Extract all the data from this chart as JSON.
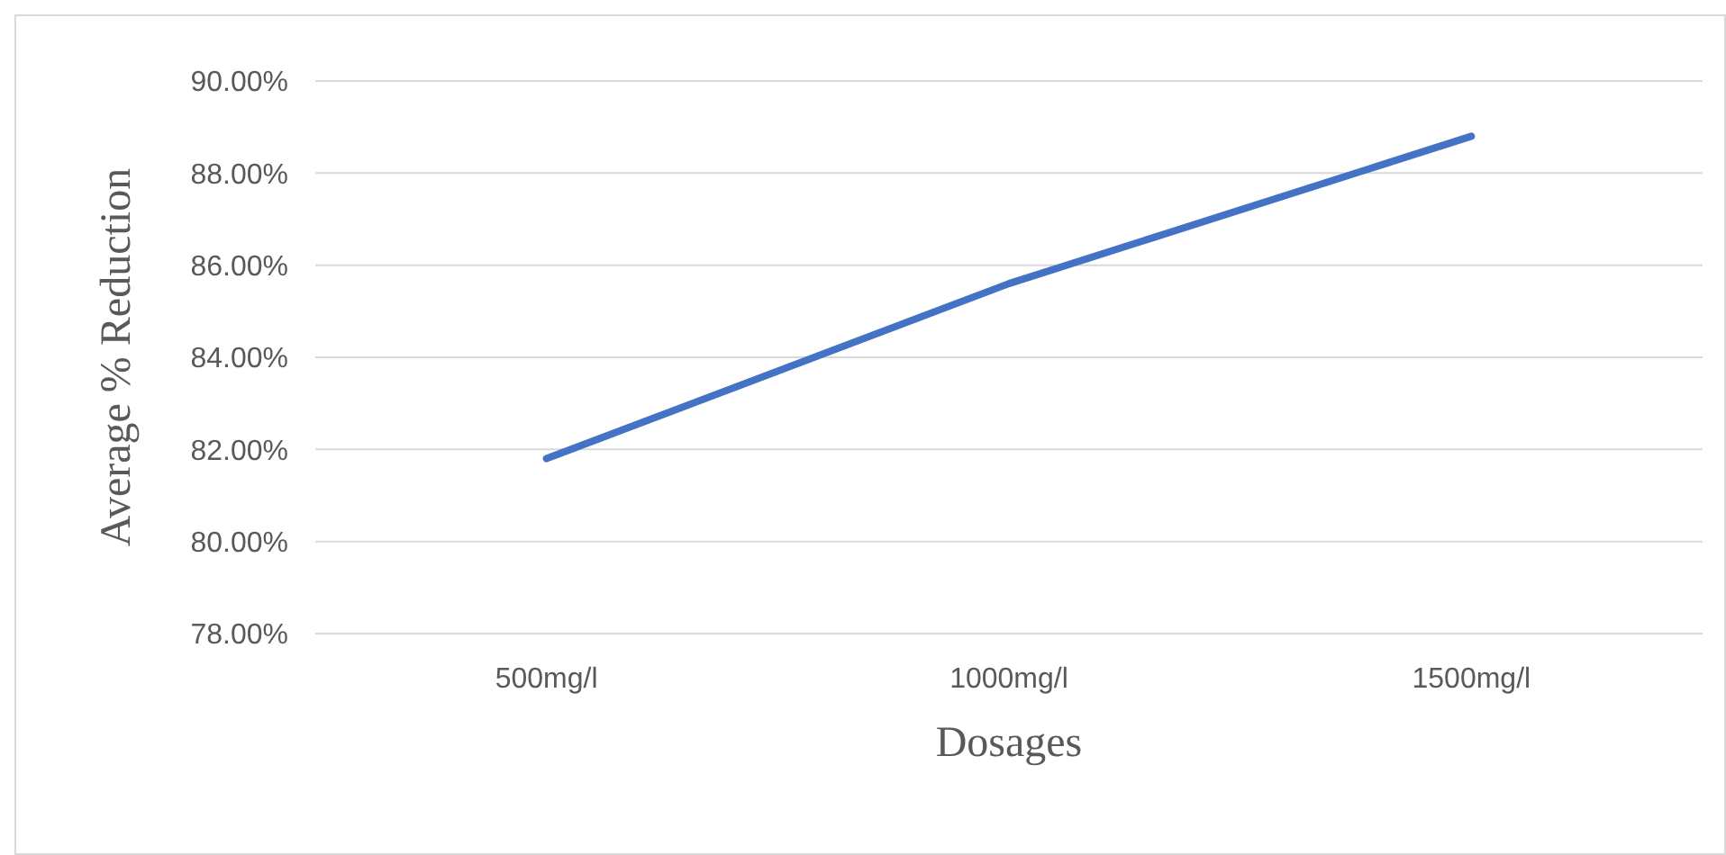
{
  "chart_data": {
    "type": "line",
    "xlabel": "Dosages",
    "ylabel": "Average % Reduction",
    "categories": [
      "500mg/l",
      "1000mg/l",
      "1500mg/l"
    ],
    "series": [
      {
        "color": "#4472c4",
        "values": [
          81.8,
          85.6,
          88.8
        ]
      }
    ],
    "ylim": [
      78,
      90
    ],
    "yticks": [
      {
        "value": 78,
        "label": "78.00%"
      },
      {
        "value": 80,
        "label": "80.00%"
      },
      {
        "value": 82,
        "label": "82.00%"
      },
      {
        "value": 84,
        "label": "84.00%"
      },
      {
        "value": 86,
        "label": "86.00%"
      },
      {
        "value": 88,
        "label": "88.00%"
      },
      {
        "value": 90,
        "label": "90.00%"
      }
    ],
    "grid": "y",
    "marker": "none",
    "line_style": "solid"
  }
}
